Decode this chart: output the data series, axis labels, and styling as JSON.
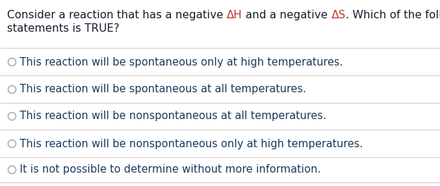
{
  "segments_line1": [
    {
      "text": "Consider a reaction that has a negative ",
      "color": "#1a1a2e"
    },
    {
      "text": "ΔH",
      "color": "#c0392b"
    },
    {
      "text": " and a negative ",
      "color": "#1a1a2e"
    },
    {
      "text": "ΔS",
      "color": "#c0392b"
    },
    {
      "text": ". Which of the following",
      "color": "#1a1a2e"
    }
  ],
  "title_line2": "statements is TRUE?",
  "title_color_normal": "#1a1a2e",
  "options": [
    "This reaction will be spontaneous only at high temperatures.",
    "This reaction will be spontaneous at all temperatures.",
    "This reaction will be nonspontaneous at all temperatures.",
    "This reaction will be nonspontaneous only at high temperatures.",
    "It is not possible to determine without more information."
  ],
  "option_text_color": "#1a3a5c",
  "background_color": "#ffffff",
  "divider_color": "#cccccc",
  "circle_edge_color": "#aaaaaa",
  "fontsize_title": 11.2,
  "fontsize_options": 10.8
}
